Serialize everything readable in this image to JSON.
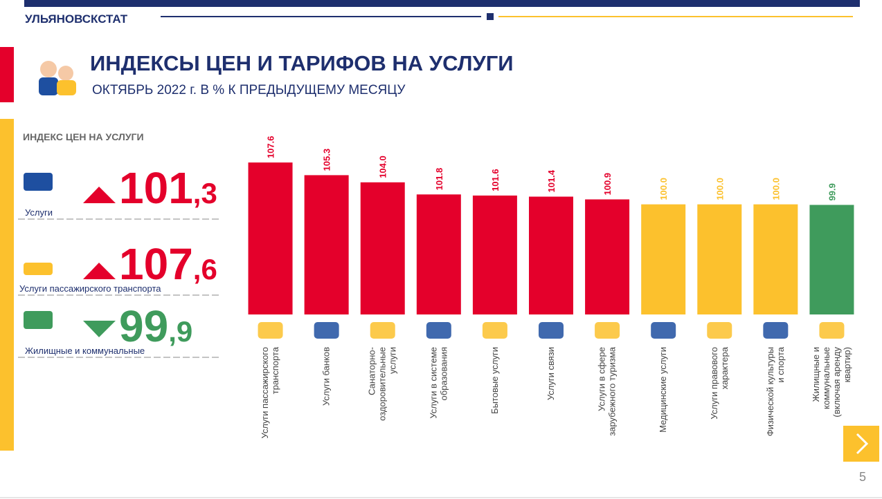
{
  "header": {
    "org": "УЛЬЯНОВСКСТАТ",
    "title": "ИНДЕКСЫ ЦЕН И ТАРИФОВ НА УСЛУГИ",
    "subtitle": "ОКТЯБРЬ 2022 г. В % К ПРЕДЫДУЩЕМУ МЕСЯЦУ"
  },
  "panel": {
    "heading": "ИНДЕКС ЦЕН НА УСЛУГИ",
    "items": [
      {
        "label": "Услуги",
        "value": "101,3",
        "color": "#e4002b",
        "trend": "up"
      },
      {
        "label": "Услуги  пассажирского транспорта",
        "value": "107,6",
        "color": "#e4002b",
        "trend": "up"
      },
      {
        "label": "Жилищные и коммунальные",
        "value": "99,9",
        "color": "#3f9b5c",
        "trend": "down"
      }
    ]
  },
  "chart_data": {
    "type": "bar",
    "categories": [
      "Услуги пассажирского\nтранспорта",
      "Услуги банков",
      "Санаторно-\nоздоровительные\nуслуги",
      "Услуги в системе\nобразования",
      "Бытовые услуги",
      "Услуги связи",
      "Услуги в сфере\nзарубежного туризма",
      "Медицинские услуги",
      "Услуги правового\nхарактера",
      "Физической культуры\nи спорта",
      "Жилищные и\nкоммунальные\n(включая аренду\nквартир)"
    ],
    "values": [
      107.6,
      105.3,
      104.0,
      101.8,
      101.6,
      101.4,
      100.9,
      100.0,
      100.0,
      100.0,
      99.9
    ],
    "value_labels": [
      "107.6",
      "105.3",
      "104.0",
      "101.8",
      "101.6",
      "101.4",
      "100.9",
      "100.0",
      "100.0",
      "100.0",
      "99.9"
    ],
    "colors": [
      "#e4002b",
      "#e4002b",
      "#e4002b",
      "#e4002b",
      "#e4002b",
      "#e4002b",
      "#e4002b",
      "#fcc12d",
      "#fcc12d",
      "#fcc12d",
      "#3f9b5c"
    ],
    "ylim": [
      80,
      110
    ]
  },
  "page_number": "5"
}
